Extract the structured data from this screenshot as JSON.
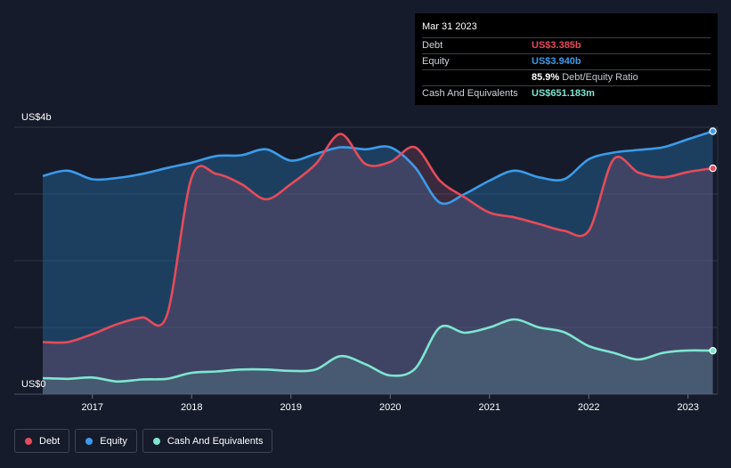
{
  "tooltip": {
    "date": "Mar 31 2023",
    "rows": [
      {
        "name": "Debt",
        "value": "US$3.385b",
        "color": "#e64b5a"
      },
      {
        "name": "Equity",
        "value": "US$3.940b",
        "color": "#3d9be9"
      },
      {
        "name": "",
        "value": "85.9%",
        "sub": "Debt/Equity Ratio",
        "color": "#ffffff"
      },
      {
        "name": "Cash And Equivalents",
        "value": "US$651.183m",
        "color": "#7ee6d2"
      }
    ]
  },
  "legend": [
    {
      "label": "Debt",
      "color": "#e64b5a"
    },
    {
      "label": "Equity",
      "color": "#3d9be9"
    },
    {
      "label": "Cash And Equivalents",
      "color": "#7ee6d2"
    }
  ],
  "chart_data": {
    "type": "area",
    "ylim": [
      0,
      4
    ],
    "y_tick_labels": {
      "top": "US$4b",
      "bottom": "US$0"
    },
    "x_ticks": [
      2017,
      2018,
      2019,
      2020,
      2021,
      2022,
      2023
    ],
    "grid": true,
    "series": [
      {
        "name": "Equity",
        "color": "#3d9be9",
        "points": [
          [
            2016.5,
            3.27
          ],
          [
            2016.75,
            3.35
          ],
          [
            2017.0,
            3.22
          ],
          [
            2017.25,
            3.24
          ],
          [
            2017.5,
            3.3
          ],
          [
            2017.75,
            3.39
          ],
          [
            2018.0,
            3.47
          ],
          [
            2018.25,
            3.57
          ],
          [
            2018.5,
            3.58
          ],
          [
            2018.75,
            3.67
          ],
          [
            2019.0,
            3.5
          ],
          [
            2019.25,
            3.6
          ],
          [
            2019.5,
            3.7
          ],
          [
            2019.75,
            3.67
          ],
          [
            2020.0,
            3.7
          ],
          [
            2020.25,
            3.4
          ],
          [
            2020.5,
            2.87
          ],
          [
            2020.75,
            3.0
          ],
          [
            2021.0,
            3.2
          ],
          [
            2021.25,
            3.35
          ],
          [
            2021.5,
            3.25
          ],
          [
            2021.75,
            3.22
          ],
          [
            2022.0,
            3.52
          ],
          [
            2022.25,
            3.62
          ],
          [
            2022.5,
            3.66
          ],
          [
            2022.75,
            3.7
          ],
          [
            2023.0,
            3.82
          ],
          [
            2023.25,
            3.94
          ]
        ]
      },
      {
        "name": "Debt",
        "color": "#e64b5a",
        "points": [
          [
            2016.5,
            0.78
          ],
          [
            2016.75,
            0.78
          ],
          [
            2017.0,
            0.9
          ],
          [
            2017.25,
            1.05
          ],
          [
            2017.5,
            1.15
          ],
          [
            2017.75,
            1.18
          ],
          [
            2018.0,
            3.25
          ],
          [
            2018.25,
            3.3
          ],
          [
            2018.5,
            3.15
          ],
          [
            2018.75,
            2.92
          ],
          [
            2019.0,
            3.15
          ],
          [
            2019.25,
            3.45
          ],
          [
            2019.5,
            3.9
          ],
          [
            2019.75,
            3.45
          ],
          [
            2020.0,
            3.48
          ],
          [
            2020.25,
            3.7
          ],
          [
            2020.5,
            3.2
          ],
          [
            2020.75,
            2.95
          ],
          [
            2021.0,
            2.72
          ],
          [
            2021.25,
            2.65
          ],
          [
            2021.5,
            2.55
          ],
          [
            2021.75,
            2.45
          ],
          [
            2022.0,
            2.45
          ],
          [
            2022.25,
            3.52
          ],
          [
            2022.5,
            3.32
          ],
          [
            2022.75,
            3.25
          ],
          [
            2023.0,
            3.33
          ],
          [
            2023.25,
            3.385
          ]
        ]
      },
      {
        "name": "Cash And Equivalents",
        "color": "#7ee6d2",
        "points": [
          [
            2016.5,
            0.24
          ],
          [
            2016.75,
            0.23
          ],
          [
            2017.0,
            0.25
          ],
          [
            2017.25,
            0.19
          ],
          [
            2017.5,
            0.22
          ],
          [
            2017.75,
            0.23
          ],
          [
            2018.0,
            0.32
          ],
          [
            2018.25,
            0.34
          ],
          [
            2018.5,
            0.37
          ],
          [
            2018.75,
            0.37
          ],
          [
            2019.0,
            0.35
          ],
          [
            2019.25,
            0.37
          ],
          [
            2019.5,
            0.57
          ],
          [
            2019.75,
            0.45
          ],
          [
            2020.0,
            0.28
          ],
          [
            2020.25,
            0.38
          ],
          [
            2020.5,
            1.0
          ],
          [
            2020.75,
            0.92
          ],
          [
            2021.0,
            1.0
          ],
          [
            2021.25,
            1.12
          ],
          [
            2021.5,
            1.0
          ],
          [
            2021.75,
            0.93
          ],
          [
            2022.0,
            0.72
          ],
          [
            2022.25,
            0.62
          ],
          [
            2022.5,
            0.52
          ],
          [
            2022.75,
            0.62
          ],
          [
            2023.0,
            0.655
          ],
          [
            2023.25,
            0.651
          ]
        ]
      }
    ]
  }
}
